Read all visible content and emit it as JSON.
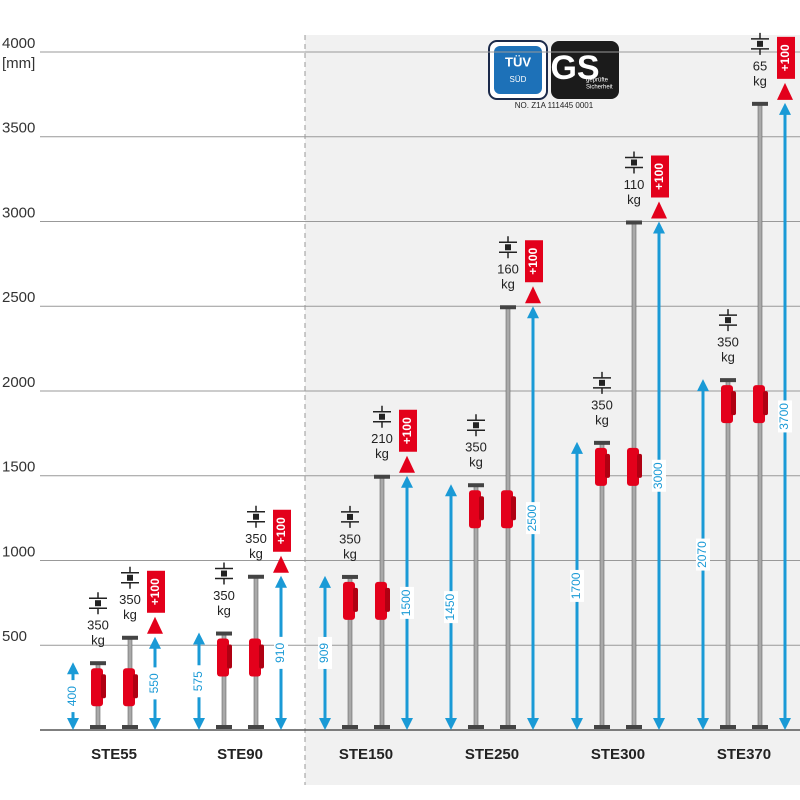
{
  "chart_data": {
    "type": "range",
    "y_unit": "[mm]",
    "ylim": [
      0,
      4000
    ],
    "yticks": [
      500,
      1000,
      1500,
      2000,
      2500,
      3000,
      3500,
      4000
    ],
    "categories": [
      "STE55",
      "STE90",
      "STE150",
      "STE250",
      "STE300",
      "STE370"
    ],
    "min_height": [
      400,
      575,
      909,
      1450,
      1700,
      2070
    ],
    "max_height": [
      550,
      910,
      1500,
      2500,
      3000,
      3700
    ],
    "min_load": [
      350,
      350,
      350,
      350,
      350,
      350
    ],
    "max_load": [
      350,
      350,
      210,
      160,
      110,
      65
    ],
    "load_unit": "kg",
    "extension_label": "+100",
    "arrow_color": "#1a9ad6",
    "accent_color": "#e3001b",
    "certification": {
      "tuv_top": "TÜV",
      "tuv_bottom": "SÜD",
      "gs": "GS",
      "gs_caption_1": "geprüfte",
      "gs_caption_2": "Sicherheit",
      "number": "NO. Z1A 111445 0001"
    }
  }
}
